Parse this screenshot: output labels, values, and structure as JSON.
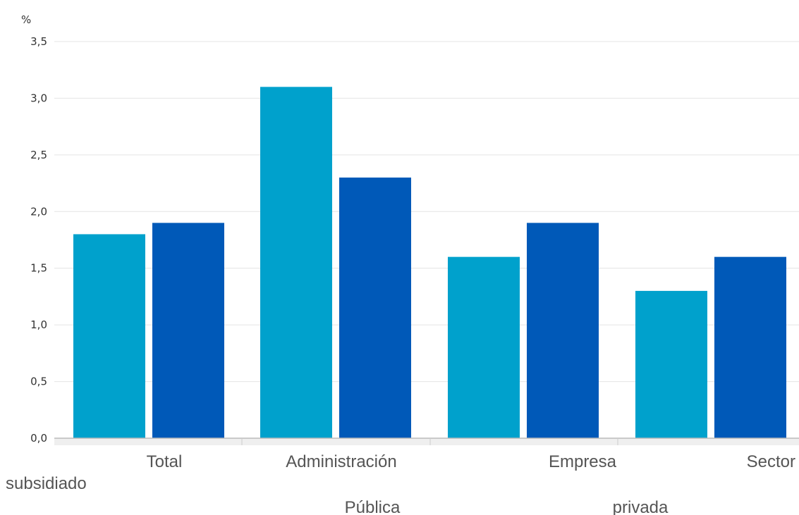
{
  "chart_data": {
    "type": "bar",
    "title": "",
    "xlabel": "",
    "ylabel": "%",
    "ylim": [
      0,
      3.5
    ],
    "yticks": [
      "0,0",
      "0,5",
      "1,0",
      "1,5",
      "2,0",
      "2,5",
      "3,0",
      "3,5"
    ],
    "grid": true,
    "legend": "none",
    "categories": [
      "Total",
      "Administración Pública",
      "Empresa privada",
      "Sector subsidiado"
    ],
    "category_label_lines": [
      {
        "line1": "Total",
        "line2": ""
      },
      {
        "line1": "Administración",
        "line2": "Pública"
      },
      {
        "line1": "Empresa",
        "line2": "privada"
      },
      {
        "line1": "Sector",
        "line2": "subsidiado"
      }
    ],
    "series": [
      {
        "values": [
          1.8,
          3.1,
          1.6,
          1.3
        ],
        "color": "#00a1cc"
      },
      {
        "values": [
          1.9,
          2.3,
          1.9,
          1.6
        ],
        "color": "#0059b8"
      }
    ]
  }
}
